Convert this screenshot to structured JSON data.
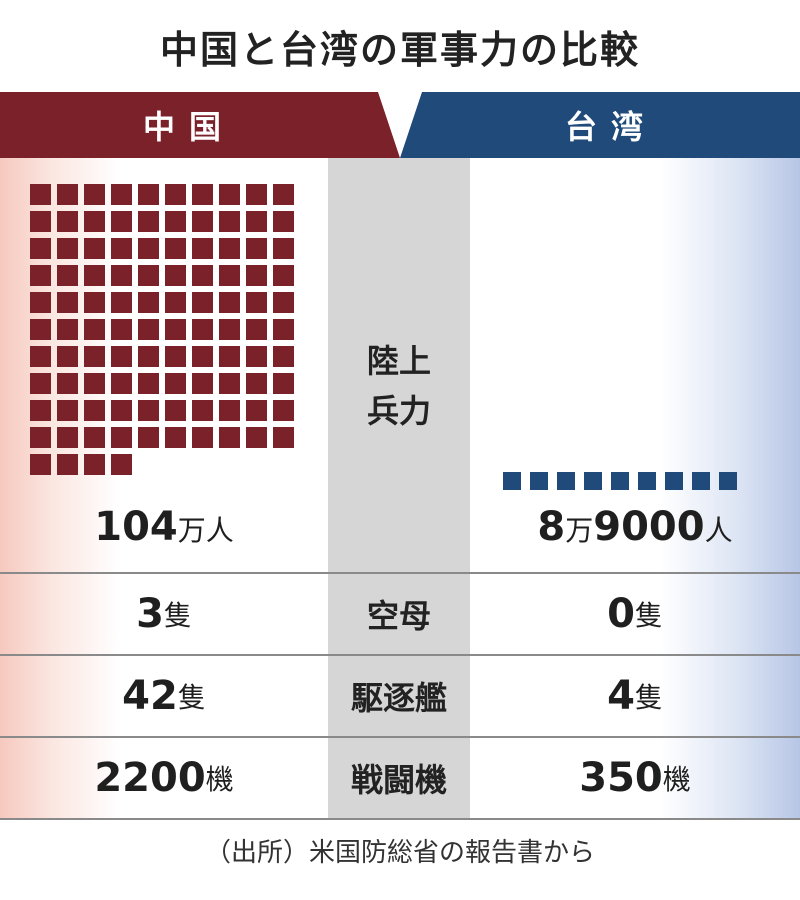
{
  "title": "中国と台湾の軍事力の比較",
  "colors": {
    "china": "#7a2129",
    "taiwan": "#1f4a7a",
    "divider": "#8a8a8a",
    "center_band": "#d6d6d6"
  },
  "header": {
    "china": "中国",
    "taiwan": "台湾"
  },
  "chart_data": {
    "type": "table",
    "columns": [
      "中国",
      "台湾"
    ],
    "icon_unit_note": "each square represents 10,000 troops",
    "rows": [
      {
        "metric_lines": [
          "陸上",
          "兵力"
        ],
        "china_value": 1040000,
        "taiwan_value": 89000,
        "china_icons": 104,
        "taiwan_icons": 9,
        "china_display": {
          "num": "104",
          "unit": "万人"
        },
        "taiwan_display": {
          "num1": "8",
          "unit1": "万",
          "num2": "9000",
          "unit2": "人"
        }
      },
      {
        "metric": "空母",
        "china_value": 3,
        "taiwan_value": 0,
        "china_display": {
          "num": "3",
          "unit": "隻"
        },
        "taiwan_display": {
          "num": "0",
          "unit": "隻"
        }
      },
      {
        "metric": "駆逐艦",
        "china_value": 42,
        "taiwan_value": 4,
        "china_display": {
          "num": "42",
          "unit": "隻"
        },
        "taiwan_display": {
          "num": "4",
          "unit": "隻"
        }
      },
      {
        "metric": "戦闘機",
        "china_value": 2200,
        "taiwan_value": 350,
        "china_display": {
          "num": "2200",
          "unit": "機"
        },
        "taiwan_display": {
          "num": "350",
          "unit": "機"
        }
      }
    ]
  },
  "source": "（出所）米国防総省の報告書から"
}
